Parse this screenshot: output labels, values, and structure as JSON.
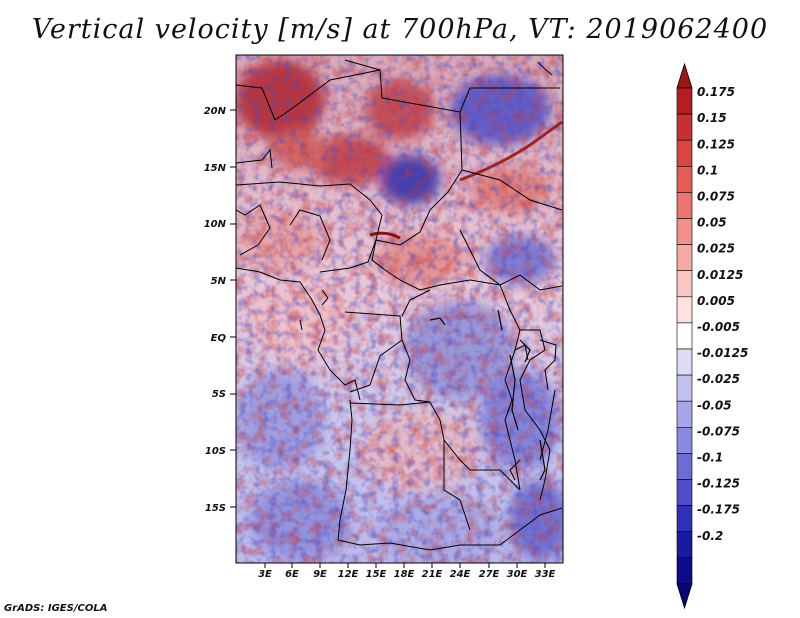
{
  "title": "Vertical velocity [m/s] at 700hPa, VT: 2019062400",
  "credit": "GrADS: IGES/COLA",
  "map": {
    "lat_labels": [
      "20N",
      "15N",
      "10N",
      "5N",
      "EQ",
      "5S",
      "10S",
      "15S"
    ],
    "lon_labels": [
      "3E",
      "6E",
      "9E",
      "12E",
      "15E",
      "18E",
      "21E",
      "24E",
      "27E",
      "30E",
      "33E"
    ]
  },
  "colorbar": {
    "labels": [
      "0.175",
      "0.15",
      "0.125",
      "0.1",
      "0.075",
      "0.05",
      "0.025",
      "0.0125",
      "0.005",
      "-0.005",
      "-0.0125",
      "-0.025",
      "-0.05",
      "-0.075",
      "-0.1",
      "-0.125",
      "-0.175",
      "-0.2"
    ],
    "colors": [
      "#b41e1e",
      "#c8302e",
      "#d8463f",
      "#e45e55",
      "#ec766d",
      "#f29089",
      "#f6aaa5",
      "#fac6c2",
      "#fde2e0",
      "#ffffff",
      "#dcdcf6",
      "#c2c2f0",
      "#a6a6e8",
      "#8a8ae0",
      "#6c6cd6",
      "#4e4ec8",
      "#3030b6",
      "#1a1aa0",
      "#0c0c8a"
    ],
    "top_color": "#a01414",
    "bottom_color": "#06067a"
  }
}
